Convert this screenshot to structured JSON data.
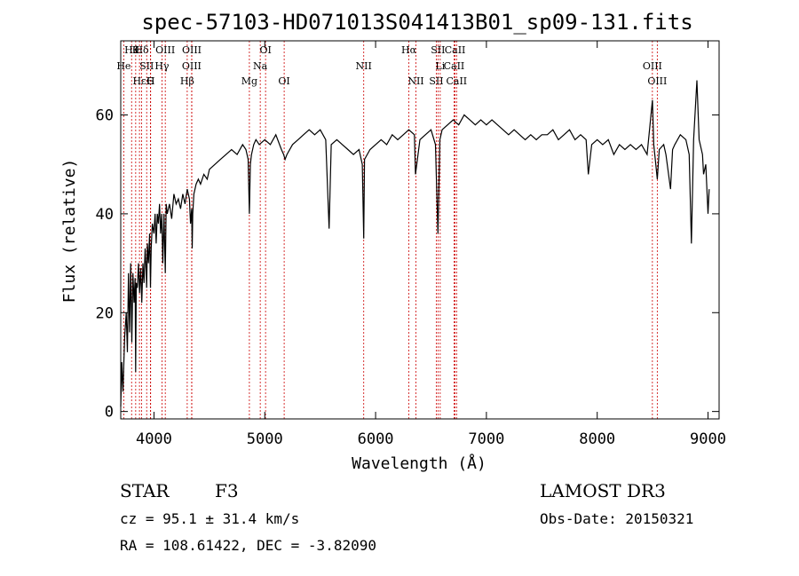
{
  "chart_data": {
    "type": "line",
    "title": "spec-57103-HD071013S041413B01_sp09-131.fits",
    "xlabel": "Wavelength (Å)",
    "ylabel": "Flux (relative)",
    "xlim": [
      3700,
      9100
    ],
    "ylim": [
      -1.5,
      75
    ],
    "xticks": [
      4000,
      5000,
      6000,
      7000,
      8000,
      9000
    ],
    "xtick_labels": [
      "4000",
      "5000",
      "6000",
      "7000",
      "8000",
      "9000"
    ],
    "yticks": [
      0,
      20,
      40,
      60
    ],
    "ytick_labels": [
      "0",
      "20",
      "40",
      "60"
    ],
    "grid": false,
    "series": [
      {
        "x": [
          3700,
          3710,
          3720,
          3735,
          3750,
          3760,
          3770,
          3780,
          3790,
          3800,
          3810,
          3820,
          3830,
          3835,
          3840,
          3850,
          3860,
          3870,
          3880,
          3890,
          3900,
          3910,
          3920,
          3930,
          3934,
          3940,
          3950,
          3960,
          3968,
          3975,
          3985,
          4000,
          4010,
          4020,
          4030,
          4040,
          4050,
          4060,
          4070,
          4080,
          4090,
          4102,
          4110,
          4120,
          4140,
          4160,
          4180,
          4200,
          4220,
          4240,
          4260,
          4280,
          4300,
          4320,
          4330,
          4340,
          4345,
          4350,
          4360,
          4380,
          4400,
          4420,
          4450,
          4480,
          4500,
          4550,
          4600,
          4650,
          4700,
          4750,
          4800,
          4830,
          4850,
          4861,
          4870,
          4880,
          4900,
          4920,
          4950,
          5000,
          5050,
          5100,
          5150,
          5170,
          5183,
          5200,
          5250,
          5300,
          5350,
          5400,
          5450,
          5500,
          5550,
          5580,
          5600,
          5650,
          5700,
          5750,
          5800,
          5850,
          5880,
          5893,
          5900,
          5950,
          6000,
          6050,
          6100,
          6150,
          6200,
          6250,
          6300,
          6350,
          6360,
          6400,
          6450,
          6500,
          6540,
          6563,
          6580,
          6600,
          6650,
          6700,
          6750,
          6800,
          6850,
          6900,
          6950,
          7000,
          7050,
          7100,
          7150,
          7200,
          7250,
          7300,
          7350,
          7400,
          7450,
          7500,
          7550,
          7600,
          7650,
          7700,
          7750,
          7800,
          7850,
          7900,
          7920,
          7950,
          8000,
          8050,
          8100,
          8150,
          8200,
          8250,
          8300,
          8350,
          8400,
          8450,
          8498,
          8510,
          8542,
          8560,
          8600,
          8620,
          8662,
          8680,
          8700,
          8750,
          8800,
          8830,
          8850,
          8870,
          8900,
          8920,
          8950,
          8960,
          8980,
          9000,
          9010
        ],
        "y": [
          1,
          10,
          4,
          15,
          20,
          12,
          28,
          16,
          30,
          14,
          28,
          22,
          27,
          8,
          26,
          25,
          30,
          24,
          29,
          22,
          30,
          26,
          33,
          28,
          25,
          34,
          30,
          36,
          25,
          33,
          38,
          36,
          40,
          34,
          40,
          38,
          42,
          36,
          40,
          30,
          40,
          28,
          42,
          40,
          42,
          39,
          44,
          42,
          43,
          41,
          44,
          42,
          45,
          43,
          38,
          41,
          33,
          40,
          44,
          46,
          47,
          46,
          48,
          47,
          49,
          50,
          51,
          52,
          53,
          52,
          54,
          53,
          51,
          40,
          50,
          52,
          54,
          55,
          54,
          55,
          54,
          56,
          53,
          52,
          51,
          52,
          54,
          55,
          56,
          57,
          56,
          57,
          55,
          37,
          54,
          55,
          54,
          53,
          52,
          53,
          50,
          35,
          51,
          53,
          54,
          55,
          54,
          56,
          55,
          56,
          57,
          56,
          48,
          55,
          56,
          57,
          54,
          36,
          55,
          57,
          58,
          59,
          58,
          60,
          59,
          58,
          59,
          58,
          59,
          58,
          57,
          56,
          57,
          56,
          55,
          56,
          55,
          56,
          56,
          57,
          55,
          56,
          57,
          55,
          56,
          55,
          48,
          54,
          55,
          54,
          55,
          52,
          54,
          53,
          54,
          53,
          54,
          52,
          63,
          54,
          47,
          53,
          54,
          52,
          45,
          53,
          54,
          56,
          55,
          52,
          34,
          55,
          67,
          55,
          52,
          48,
          50,
          40,
          45
        ]
      }
    ],
    "lines": {
      "top": [
        {
          "x": 3798,
          "label": "Hθ",
          "row": 0
        },
        {
          "x": 3835,
          "label": "K",
          "row": 0
        },
        {
          "x": 3889,
          "label": "Hδ",
          "row": 0
        },
        {
          "x": 4102,
          "label": "OIII",
          "row": 0
        },
        {
          "x": 4341,
          "label": "OIII",
          "row": 0
        },
        {
          "x": 5007,
          "label": "OI",
          "row": 0
        },
        {
          "x": 6300,
          "label": "Hα",
          "row": 0
        },
        {
          "x": 6563,
          "label": "SII",
          "row": 0
        },
        {
          "x": 6717,
          "label": "CaII",
          "row": 0
        },
        {
          "x": 8498,
          "label": "OIII",
          "row": 1
        },
        {
          "x": 3727,
          "label": "He",
          "row": 1
        },
        {
          "x": 3934,
          "label": "SII",
          "row": 1
        },
        {
          "x": 4072,
          "label": "Hγ",
          "row": 1
        },
        {
          "x": 4340,
          "label": "OIII",
          "row": 1
        },
        {
          "x": 4959,
          "label": "Na",
          "row": 1
        },
        {
          "x": 5893,
          "label": "NII",
          "row": 1
        },
        {
          "x": 6583,
          "label": "Li",
          "row": 1
        },
        {
          "x": 6708,
          "label": "CaII",
          "row": 1
        },
        {
          "x": 8542,
          "label": "OIII",
          "row": 2
        },
        {
          "x": 3869,
          "label": "Hε",
          "row": 2
        },
        {
          "x": 3970,
          "label": "H",
          "row": 2
        },
        {
          "x": 3968,
          "label": "G",
          "row": 2
        },
        {
          "x": 4300,
          "label": "Hβ",
          "row": 2
        },
        {
          "x": 4861,
          "label": "Mg",
          "row": 2
        },
        {
          "x": 5175,
          "label": "OI",
          "row": 2
        },
        {
          "x": 6364,
          "label": "NII",
          "row": 2
        },
        {
          "x": 6548,
          "label": "SII",
          "row": 2
        },
        {
          "x": 6731,
          "label": "CaII",
          "row": 2
        }
      ]
    }
  },
  "footer": {
    "class_label": "STAR",
    "subclass": "F3",
    "survey": "LAMOST DR3",
    "cz": "cz = 95.1 ± 31.4 km/s",
    "obs_date": "Obs-Date: 20150321",
    "coords": "RA = 108.61422, DEC =  -3.82090"
  }
}
